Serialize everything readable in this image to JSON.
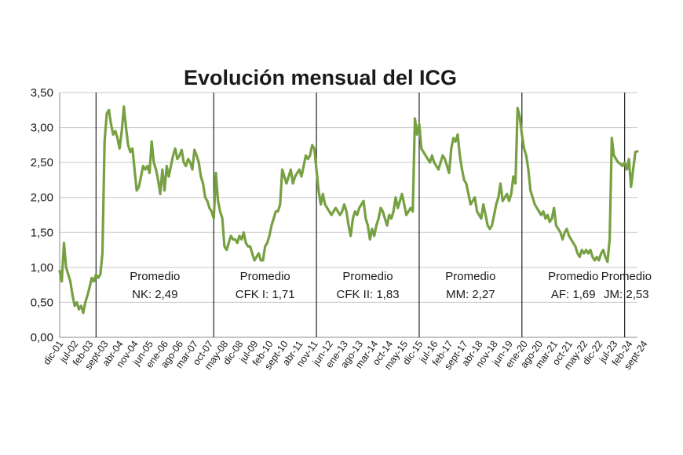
{
  "chart_data": {
    "type": "line",
    "title": "Evolución mensual del ICG",
    "xlabel": "",
    "ylabel": "",
    "ylim": [
      0,
      3.5
    ],
    "yticks": [
      "0,00",
      "0,50",
      "1,00",
      "1,50",
      "2,00",
      "2,50",
      "3,00",
      "3,50"
    ],
    "grid": true,
    "legend": "none",
    "colors": {
      "line": "#77a042",
      "grid": "#c8c8c8",
      "divider": "#222222"
    },
    "x_tick_labels": [
      "dic-01",
      "jul-02",
      "feb-03",
      "sept-03",
      "abr-04",
      "nov-04",
      "jun-05",
      "ene-06",
      "ago-06",
      "mar-07",
      "oct-07",
      "may-08",
      "dic-08",
      "jul-09",
      "feb-10",
      "sept-10",
      "abr-11",
      "nov-11",
      "jun-12",
      "ene-13",
      "ago-13",
      "mar-14",
      "oct-14",
      "may-15",
      "dic-15",
      "jul-16",
      "feb-17",
      "sept-17",
      "abr-18",
      "nov-18",
      "jun-19",
      "ene-20",
      "ago-20",
      "mar-21",
      "oct-21",
      "may-22",
      "dic-22",
      "jul-23",
      "feb-24",
      "sept-24"
    ],
    "period_dividers": [
      "may-03",
      "dic-07",
      "dic-11",
      "dic-15",
      "dic-19",
      "dic-23"
    ],
    "annotations": [
      {
        "line1": "Promedio",
        "line2": "NK: 2,49"
      },
      {
        "line1": "Promedio",
        "line2": "CFK I: 1,71"
      },
      {
        "line1": "Promedio",
        "line2": "CFK II: 1,83"
      },
      {
        "line1": "Promedio",
        "line2": "MM: 2,27"
      },
      {
        "line1": "Promedio",
        "line2": "AF: 1,69"
      },
      {
        "line1": "Promedio",
        "line2": "JM: 2,53"
      }
    ],
    "series": [
      {
        "name": "",
        "x_start": "dic-01",
        "frequency": "monthly",
        "values": [
          0.95,
          0.8,
          1.35,
          1.0,
          0.9,
          0.8,
          0.6,
          0.45,
          0.5,
          0.4,
          0.45,
          0.35,
          0.5,
          0.6,
          0.72,
          0.85,
          0.8,
          0.9,
          0.85,
          0.9,
          1.2,
          2.8,
          3.2,
          3.25,
          3.05,
          2.9,
          2.95,
          2.85,
          2.7,
          2.95,
          3.3,
          3.0,
          2.75,
          2.65,
          2.7,
          2.4,
          2.1,
          2.15,
          2.3,
          2.45,
          2.4,
          2.45,
          2.35,
          2.8,
          2.5,
          2.4,
          2.25,
          2.05,
          2.4,
          2.1,
          2.45,
          2.3,
          2.45,
          2.6,
          2.7,
          2.55,
          2.6,
          2.68,
          2.5,
          2.45,
          2.55,
          2.5,
          2.4,
          2.68,
          2.6,
          2.5,
          2.3,
          2.2,
          2.0,
          1.95,
          1.85,
          1.8,
          1.7,
          2.35,
          1.95,
          1.8,
          1.7,
          1.3,
          1.25,
          1.35,
          1.45,
          1.4,
          1.4,
          1.35,
          1.45,
          1.4,
          1.5,
          1.35,
          1.3,
          1.3,
          1.2,
          1.1,
          1.15,
          1.2,
          1.1,
          1.1,
          1.3,
          1.35,
          1.45,
          1.6,
          1.7,
          1.8,
          1.8,
          1.9,
          2.4,
          2.3,
          2.2,
          2.3,
          2.4,
          2.2,
          2.3,
          2.35,
          2.4,
          2.3,
          2.45,
          2.6,
          2.55,
          2.6,
          2.75,
          2.7,
          2.4,
          2.1,
          1.9,
          2.05,
          1.9,
          1.85,
          1.8,
          1.75,
          1.8,
          1.85,
          1.8,
          1.75,
          1.8,
          1.9,
          1.8,
          1.6,
          1.45,
          1.7,
          1.8,
          1.75,
          1.85,
          1.9,
          1.95,
          1.7,
          1.6,
          1.4,
          1.55,
          1.45,
          1.6,
          1.7,
          1.85,
          1.8,
          1.7,
          1.6,
          1.75,
          1.7,
          1.8,
          2.0,
          1.85,
          1.95,
          2.05,
          1.9,
          1.75,
          1.8,
          1.85,
          1.8,
          3.13,
          2.9,
          3.05,
          2.7,
          2.65,
          2.6,
          2.55,
          2.5,
          2.6,
          2.5,
          2.45,
          2.4,
          2.5,
          2.6,
          2.55,
          2.45,
          2.35,
          2.7,
          2.85,
          2.8,
          2.9,
          2.6,
          2.4,
          2.25,
          2.2,
          2.05,
          1.9,
          1.95,
          2.0,
          1.8,
          1.75,
          1.7,
          1.9,
          1.75,
          1.6,
          1.55,
          1.6,
          1.75,
          1.9,
          2.0,
          2.2,
          1.95,
          2.0,
          2.05,
          1.95,
          2.05,
          2.3,
          2.2,
          3.28,
          3.15,
          2.9,
          2.7,
          2.6,
          2.4,
          2.1,
          2.0,
          1.9,
          1.85,
          1.8,
          1.75,
          1.8,
          1.7,
          1.75,
          1.65,
          1.7,
          1.85,
          1.6,
          1.55,
          1.5,
          1.4,
          1.5,
          1.55,
          1.45,
          1.4,
          1.35,
          1.3,
          1.2,
          1.15,
          1.25,
          1.2,
          1.25,
          1.2,
          1.25,
          1.15,
          1.1,
          1.15,
          1.1,
          1.2,
          1.25,
          1.15,
          1.08,
          1.4,
          2.85,
          2.6,
          2.55,
          2.5,
          2.48,
          2.45,
          2.5,
          2.4,
          2.55,
          2.15,
          2.4,
          2.65,
          2.66
        ]
      }
    ]
  }
}
